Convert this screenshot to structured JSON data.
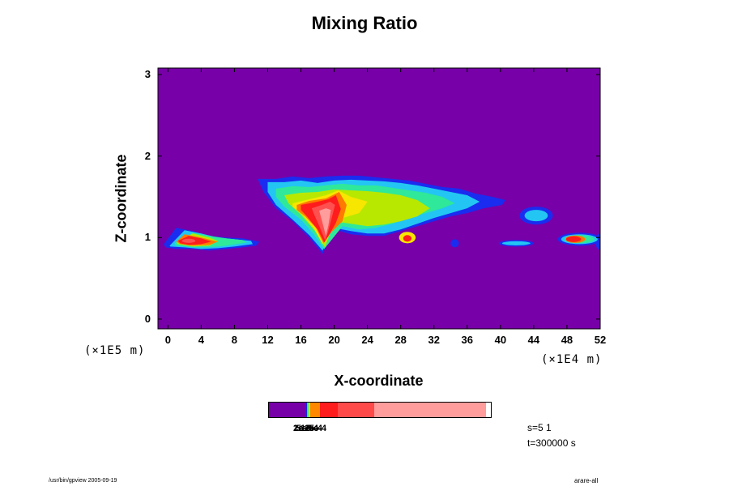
{
  "chart_data": {
    "type": "heatmap",
    "title": "Mixing Ratio",
    "xlabel": "X-coordinate",
    "ylabel": "Z-coordinate",
    "x_unit": "(×1E4 m)",
    "y_unit": "(×1E5 m)",
    "x_ticks": [
      "0",
      "4",
      "8",
      "12",
      "16",
      "20",
      "24",
      "28",
      "32",
      "36",
      "40",
      "44",
      "48",
      "52"
    ],
    "y_ticks": [
      "0",
      "1",
      "2",
      "3"
    ],
    "xlim": [
      -1.2,
      52
    ],
    "ylim": [
      -0.12,
      3.08
    ],
    "background_color": "#7700a8",
    "field_regions": [
      {
        "level": 1,
        "color": "#1a2cf0",
        "shapes": [
          {
            "kind": "blob",
            "x": [
              10.8,
              13,
              15,
              17,
              19,
              21,
              23,
              25,
              27,
              29,
              31,
              33,
              35,
              37,
              39,
              40.6,
              40.2,
              38,
              36,
              34,
              32,
              30,
              28,
              26,
              24,
              22,
              20,
              18.6,
              17,
              15,
              13,
              11.5
            ],
            "z": [
              1.72,
              1.72,
              1.75,
              1.73,
              1.75,
              1.76,
              1.76,
              1.74,
              1.72,
              1.7,
              1.66,
              1.62,
              1.6,
              1.54,
              1.5,
              1.46,
              1.4,
              1.36,
              1.3,
              1.26,
              1.2,
              1.14,
              1.08,
              1.02,
              1.02,
              1.04,
              1.1,
              0.8,
              1.0,
              1.2,
              1.36,
              1.56
            ]
          },
          {
            "kind": "blob",
            "x": [
              -0.5,
              1,
              3,
              5,
              7,
              9,
              11,
              10.6,
              9,
              7,
              5,
              3,
              1,
              -0.3
            ],
            "z": [
              0.92,
              1.12,
              1.08,
              1.02,
              1.0,
              0.99,
              0.95,
              0.9,
              0.88,
              0.86,
              0.84,
              0.86,
              0.86,
              0.88
            ]
          },
          {
            "kind": "ellipse",
            "cx": 44.3,
            "cz": 1.27,
            "rx": 2.0,
            "rz": 0.11
          },
          {
            "kind": "ellipse",
            "cx": 49.5,
            "cz": 0.98,
            "rx": 2.6,
            "rz": 0.08
          },
          {
            "kind": "ellipse",
            "cx": 41.9,
            "cz": 0.93,
            "rx": 2.1,
            "rz": 0.04
          },
          {
            "kind": "ellipse",
            "cx": 34.5,
            "cz": 0.93,
            "rx": 0.5,
            "rz": 0.05
          },
          {
            "kind": "ellipse",
            "cx": 52,
            "cz": 0.95,
            "rx": 0.6,
            "rz": 0.1
          }
        ]
      },
      {
        "level": 2,
        "color": "#23c6f2",
        "shapes": [
          {
            "kind": "blob",
            "x": [
              12,
              14,
              16,
              18,
              20,
              22,
              24,
              26,
              28,
              30,
              32,
              34,
              36,
              37.5,
              36,
              34,
              32,
              30,
              28,
              26,
              24,
              22,
              20,
              18.6,
              17,
              15,
              13,
              12
            ],
            "z": [
              1.68,
              1.68,
              1.7,
              1.67,
              1.7,
              1.71,
              1.7,
              1.69,
              1.67,
              1.64,
              1.6,
              1.56,
              1.52,
              1.44,
              1.36,
              1.3,
              1.24,
              1.17,
              1.1,
              1.05,
              1.05,
              1.08,
              1.12,
              0.84,
              1.03,
              1.22,
              1.4,
              1.56
            ]
          },
          {
            "kind": "blob",
            "x": [
              0.2,
              2,
              4,
              6,
              8,
              10,
              10.2,
              8,
              6,
              4,
              2,
              0.3
            ],
            "z": [
              0.9,
              1.09,
              1.05,
              1.0,
              0.98,
              0.96,
              0.92,
              0.89,
              0.87,
              0.86,
              0.88,
              0.89
            ]
          },
          {
            "kind": "ellipse",
            "cx": 44.3,
            "cz": 1.27,
            "rx": 1.4,
            "rz": 0.07
          },
          {
            "kind": "ellipse",
            "cx": 49.5,
            "cz": 0.98,
            "rx": 2.2,
            "rz": 0.06
          },
          {
            "kind": "ellipse",
            "cx": 41.9,
            "cz": 0.93,
            "rx": 1.7,
            "rz": 0.025
          }
        ]
      },
      {
        "level": 3,
        "color": "#2fe89a",
        "shapes": [
          {
            "kind": "blob",
            "x": [
              13,
              15,
              17,
              19,
              21,
              23,
              25,
              27,
              29,
              31,
              33,
              34.5,
              33,
              31,
              29,
              27,
              25,
              23,
              21,
              18.8,
              17.5,
              16,
              14,
              13
            ],
            "z": [
              1.6,
              1.63,
              1.62,
              1.64,
              1.66,
              1.64,
              1.64,
              1.61,
              1.58,
              1.55,
              1.5,
              1.42,
              1.36,
              1.3,
              1.24,
              1.17,
              1.12,
              1.1,
              1.14,
              0.86,
              1.05,
              1.22,
              1.38,
              1.5
            ]
          },
          {
            "kind": "blob",
            "x": [
              0.8,
              3,
              5,
              7,
              9,
              9.5,
              7,
              5,
              3,
              1
            ],
            "z": [
              0.93,
              1.06,
              1.02,
              0.99,
              0.97,
              0.94,
              0.9,
              0.88,
              0.88,
              0.9
            ]
          },
          {
            "kind": "ellipse",
            "cx": 49.5,
            "cz": 0.98,
            "rx": 1.8,
            "rz": 0.05
          }
        ]
      },
      {
        "level": 4,
        "color": "#b8e800",
        "shapes": [
          {
            "kind": "blob",
            "x": [
              14,
              16,
              18,
              20,
              22,
              24,
              26,
              28,
              30,
              31.5,
              30,
              28,
              26,
              24,
              22,
              20,
              18.9,
              17.7,
              16,
              14.5
            ],
            "z": [
              1.52,
              1.55,
              1.56,
              1.59,
              1.58,
              1.57,
              1.55,
              1.52,
              1.46,
              1.36,
              1.26,
              1.2,
              1.16,
              1.14,
              1.17,
              1.2,
              0.88,
              1.08,
              1.28,
              1.42
            ]
          },
          {
            "kind": "blob",
            "x": [
              1,
              3,
              5,
              6,
              5,
              3,
              1.2
            ],
            "z": [
              0.95,
              1.05,
              1.0,
              0.96,
              0.9,
              0.89,
              0.92
            ]
          }
        ]
      },
      {
        "level": 5,
        "color": "#f7e600",
        "shapes": [
          {
            "kind": "blob",
            "x": [
              15,
              17,
              19,
              20.5,
              22,
              24,
              23,
              21,
              19.3,
              18.6,
              17.5,
              16,
              15
            ],
            "z": [
              1.42,
              1.47,
              1.52,
              1.58,
              1.5,
              1.44,
              1.3,
              1.24,
              1.1,
              0.92,
              1.12,
              1.3,
              1.38
            ]
          },
          {
            "kind": "ellipse",
            "cx": 28.8,
            "cz": 1.0,
            "rx": 1.0,
            "rz": 0.07
          }
        ]
      },
      {
        "level": 6,
        "color": "#ff7a00",
        "shapes": [
          {
            "kind": "blob",
            "x": [
              15.5,
              17,
              19,
              20.6,
              21.5,
              21,
              19.6,
              18.7,
              17.8,
              16.5,
              15.5
            ],
            "z": [
              1.4,
              1.45,
              1.48,
              1.56,
              1.4,
              1.2,
              1.06,
              0.93,
              1.12,
              1.26,
              1.34
            ]
          },
          {
            "kind": "blob",
            "x": [
              1,
              2,
              4,
              6,
              5,
              3,
              1.5
            ],
            "z": [
              0.95,
              1.04,
              1.0,
              0.95,
              0.91,
              0.9,
              0.92
            ]
          },
          {
            "kind": "ellipse",
            "cx": 49.0,
            "cz": 0.98,
            "rx": 1.2,
            "rz": 0.045
          }
        ]
      },
      {
        "level": 7,
        "color": "#ff1c1c",
        "shapes": [
          {
            "kind": "blob",
            "x": [
              16,
              18,
              19.3,
              20.2,
              20.8,
              20.2,
              19.5,
              18.8,
              18,
              16.8,
              16
            ],
            "z": [
              1.4,
              1.44,
              1.47,
              1.52,
              1.35,
              1.18,
              1.05,
              0.94,
              1.1,
              1.25,
              1.34
            ]
          },
          {
            "kind": "blob",
            "x": [
              1.2,
              2.5,
              4,
              5.2,
              4,
              2.5,
              1.5
            ],
            "z": [
              0.96,
              1.02,
              0.99,
              0.95,
              0.92,
              0.91,
              0.93
            ]
          },
          {
            "kind": "ellipse",
            "cx": 48.8,
            "cz": 0.98,
            "rx": 0.9,
            "rz": 0.035
          },
          {
            "kind": "ellipse",
            "cx": 28.8,
            "cz": 0.99,
            "rx": 0.5,
            "rz": 0.04
          }
        ]
      },
      {
        "level": 8,
        "color": "#ff5050",
        "shapes": [
          {
            "kind": "blob",
            "x": [
              17.3,
              18.5,
              19.5,
              20.1,
              19.6,
              19.2,
              18.9,
              18.3,
              17.6
            ],
            "z": [
              1.36,
              1.4,
              1.44,
              1.4,
              1.2,
              1.05,
              0.97,
              1.12,
              1.28
            ]
          },
          {
            "kind": "ellipse",
            "cx": 2.5,
            "cz": 0.96,
            "rx": 0.8,
            "rz": 0.025
          }
        ]
      },
      {
        "level": 9,
        "color": "#ff9c9c",
        "shapes": [
          {
            "kind": "blob",
            "x": [
              18.2,
              19,
              19.6,
              19.3,
              19.0,
              18.6
            ],
            "z": [
              1.33,
              1.36,
              1.34,
              1.15,
              1.02,
              1.18
            ]
          }
        ]
      }
    ],
    "colorbar": {
      "colors": [
        "#7700a8",
        "#0a2ce8",
        "#1ed6f0",
        "#38f08a",
        "#c8f000",
        "#f7d400",
        "#ff8800",
        "#ff1c1c",
        "#ff4a4a",
        "#ff9c9c"
      ],
      "widths": [
        46,
        1,
        1,
        1,
        1,
        1,
        12,
        22,
        45,
        138
      ],
      "labels": [
        {
          "text": "1e-5",
          "offset": 31
        },
        {
          "text": "2e-5",
          "offset": 31
        },
        {
          "text": "5e-5",
          "offset": 35
        },
        {
          "text": "1e-4",
          "offset": 40
        },
        {
          "text": "2e-4",
          "offset": 45
        },
        {
          "text": "5e-4",
          "offset": 50
        }
      ]
    }
  },
  "stats": {
    "line1": "s=5 1",
    "line2": "t=300000 s"
  },
  "footer": {
    "left": "/usr/bin/gpview 2005-09-19",
    "right": "arare-all"
  }
}
